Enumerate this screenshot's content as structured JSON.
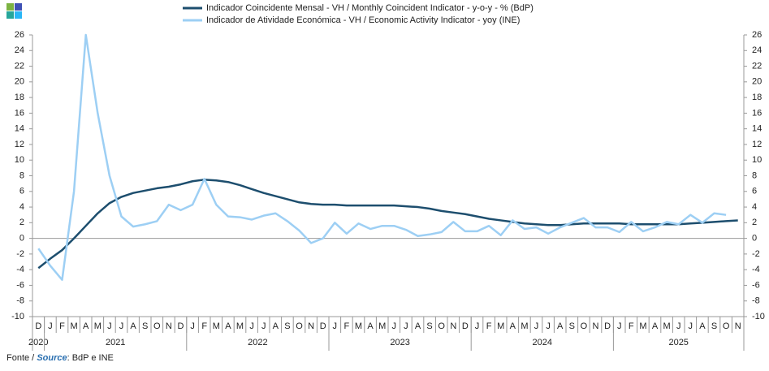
{
  "chart_data": {
    "type": "line",
    "categories": [
      "D",
      "J",
      "F",
      "M",
      "A",
      "M",
      "J",
      "J",
      "A",
      "S",
      "O",
      "N",
      "D",
      "J",
      "F",
      "M",
      "A",
      "M",
      "J",
      "J",
      "A",
      "S",
      "O",
      "N",
      "D",
      "J",
      "F",
      "M",
      "A",
      "M",
      "J",
      "J",
      "A",
      "S",
      "O",
      "N",
      "D",
      "J",
      "F",
      "M",
      "A",
      "M",
      "J",
      "J",
      "A",
      "S",
      "O",
      "N",
      "D",
      "J",
      "F",
      "M",
      "A",
      "M",
      "J",
      "J",
      "A",
      "S",
      "O",
      "N"
    ],
    "year_labels": [
      "2020",
      "2021",
      "2022",
      "2023",
      "2024",
      "2025"
    ],
    "series": [
      {
        "name": "Indicador Coincidente Mensal - VH / Monthly Coincident Indicator - y-o-y - % (BdP)",
        "color": "#1d4e6e",
        "values": [
          -3.8,
          -2.6,
          -1.5,
          0,
          1.6,
          3.2,
          4.5,
          5.3,
          5.8,
          6.1,
          6.4,
          6.6,
          6.9,
          7.3,
          7.5,
          7.4,
          7.2,
          6.8,
          6.3,
          5.8,
          5.4,
          5.0,
          4.6,
          4.4,
          4.3,
          4.3,
          4.2,
          4.2,
          4.2,
          4.2,
          4.2,
          4.1,
          4.0,
          3.8,
          3.5,
          3.3,
          3.1,
          2.8,
          2.5,
          2.3,
          2.1,
          1.9,
          1.8,
          1.7,
          1.7,
          1.8,
          1.9,
          1.9,
          1.9,
          1.9,
          1.8,
          1.8,
          1.8,
          1.8,
          1.8,
          1.9,
          2.0,
          2.1,
          2.2,
          2.3
        ]
      },
      {
        "name": "Indicador de Atividade Económica - VH / Economic Activity Indicator - yoy (INE)",
        "color": "#9dcff4",
        "values": [
          -1.3,
          -3.5,
          -5.3,
          6,
          26,
          16,
          8,
          2.8,
          1.5,
          1.8,
          2.2,
          4.3,
          3.6,
          4.3,
          7.6,
          4.3,
          2.8,
          2.7,
          2.4,
          2.9,
          3.2,
          2.2,
          1,
          -0.6,
          0,
          2,
          0.6,
          1.9,
          1.2,
          1.6,
          1.6,
          1.1,
          0.3,
          0.5,
          0.8,
          2.1,
          0.9,
          0.9,
          1.6,
          0.4,
          2.3,
          1.2,
          1.4,
          0.6,
          1.4,
          2,
          2.6,
          1.4,
          1.4,
          0.8,
          2.1,
          0.9,
          1.4,
          2.1,
          1.8,
          3.0,
          2.0,
          3.2,
          3.0,
          null
        ]
      }
    ],
    "ylim": [
      -10,
      26
    ],
    "yticks": [
      -10,
      -8,
      -6,
      -4,
      -2,
      0,
      2,
      4,
      6,
      8,
      10,
      12,
      14,
      16,
      18,
      20,
      22,
      24,
      26
    ],
    "y2lim": [
      -10,
      26
    ],
    "y2ticks": [
      -10,
      -8,
      -6,
      -4,
      -2,
      0,
      2,
      4,
      6,
      8,
      10,
      12,
      14,
      16,
      18,
      20,
      22,
      24,
      26
    ],
    "legend": "top",
    "source": {
      "prefix": "Fonte /",
      "label": "Source",
      "text": ": BdP e INE"
    }
  }
}
